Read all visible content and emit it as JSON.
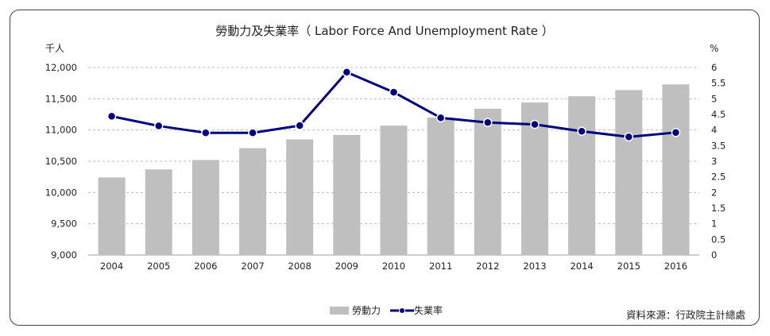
{
  "chart_data": {
    "type": "bar+line",
    "title": "勞動力及失業率（ Labor Force And Unemployment Rate ）",
    "categories": [
      "2004",
      "2005",
      "2006",
      "2007",
      "2008",
      "2009",
      "2010",
      "2011",
      "2012",
      "2013",
      "2014",
      "2015",
      "2016"
    ],
    "series": [
      {
        "name": "勞動力",
        "type": "bar",
        "axis": "left",
        "color": "#bfbfbf",
        "values": [
          10240,
          10370,
          10520,
          10710,
          10850,
          10920,
          11070,
          11200,
          11340,
          11440,
          11540,
          11640,
          11730
        ]
      },
      {
        "name": "失業率",
        "type": "line",
        "axis": "right",
        "color": "#000080",
        "values": [
          4.44,
          4.13,
          3.91,
          3.91,
          4.14,
          5.85,
          5.21,
          4.39,
          4.24,
          4.18,
          3.96,
          3.78,
          3.92
        ]
      }
    ],
    "y_left": {
      "unit": "千人",
      "ylim": [
        9000,
        12000
      ],
      "ticks": [
        "9,000",
        "9,500",
        "10,000",
        "10,500",
        "11,000",
        "11,500",
        "12,000"
      ]
    },
    "y_right": {
      "unit": "%",
      "ylim": [
        0,
        6
      ],
      "ticks": [
        "0",
        "0.5",
        "1",
        "1.5",
        "2",
        "2.5",
        "3",
        "3.5",
        "4",
        "4.5",
        "5",
        "5.5",
        "6"
      ]
    },
    "grid": true,
    "legend_position": "bottom-center",
    "source": "資料來源：行政院主計總處"
  }
}
